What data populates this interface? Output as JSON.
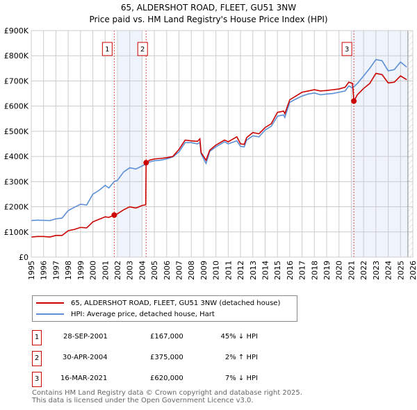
{
  "title": "65, ALDERSHOT ROAD, FLEET, GU51 3NW",
  "subtitle": "Price paid vs. HM Land Registry's House Price Index (HPI)",
  "chart_data": {
    "type": "line",
    "xlim": [
      1995,
      2026
    ],
    "ylim": [
      0,
      900000
    ],
    "yticks": [
      {
        "v": 0,
        "label": "£0"
      },
      {
        "v": 100000,
        "label": "£100K"
      },
      {
        "v": 200000,
        "label": "£200K"
      },
      {
        "v": 300000,
        "label": "£300K"
      },
      {
        "v": 400000,
        "label": "£400K"
      },
      {
        "v": 500000,
        "label": "£500K"
      },
      {
        "v": 600000,
        "label": "£600K"
      },
      {
        "v": 700000,
        "label": "£700K"
      },
      {
        "v": 800000,
        "label": "£800K"
      },
      {
        "v": 900000,
        "label": "£900K"
      }
    ],
    "xticks": [
      "1995",
      "1996",
      "1997",
      "1998",
      "1999",
      "2000",
      "2001",
      "2002",
      "2003",
      "2004",
      "2005",
      "2006",
      "2007",
      "2008",
      "2009",
      "2010",
      "2011",
      "2012",
      "2013",
      "2014",
      "2015",
      "2016",
      "2017",
      "2018",
      "2019",
      "2020",
      "2021",
      "2022",
      "2023",
      "2024",
      "2025",
      "2026"
    ],
    "grid": true,
    "shaded_ranges": [
      [
        2002,
        2004
      ],
      [
        2021,
        2025.6
      ]
    ],
    "forecast_hatch": [
      2025.6,
      2026
    ],
    "series": [
      {
        "name": "65, ALDERSHOT ROAD, FLEET, GU51 3NW (detached house)",
        "color": "#cc0000",
        "x": [
          1995,
          1995.5,
          1996,
          1996.5,
          1997,
          1997.5,
          1998,
          1998.5,
          1999,
          1999.5,
          2000,
          2000.5,
          2001,
          2001.3,
          2001.74,
          2002,
          2002.5,
          2003,
          2003.5,
          2004,
          2004.3,
          2004.33,
          2004.6,
          2005,
          2005.5,
          2006,
          2006.5,
          2007,
          2007.5,
          2008,
          2008.5,
          2008.7,
          2008.8,
          2009.2,
          2009.5,
          2010,
          2010.7,
          2011,
          2011.7,
          2012,
          2012.3,
          2012.5,
          2013,
          2013.5,
          2014,
          2014.5,
          2015,
          2015.5,
          2015.6,
          2016,
          2016.5,
          2017,
          2017.5,
          2018,
          2018.5,
          2019,
          2019.5,
          2020,
          2020.5,
          2020.8,
          2021.1,
          2021.21,
          2021.5,
          2022,
          2022.5,
          2023,
          2023.5,
          2024,
          2024.5,
          2025,
          2025.5
        ],
        "y": [
          80000,
          82000,
          82000,
          80000,
          86000,
          86000,
          105000,
          110000,
          118000,
          116000,
          140000,
          150000,
          160000,
          158000,
          167000,
          172000,
          188000,
          200000,
          195000,
          205000,
          208000,
          375000,
          385000,
          390000,
          392000,
          395000,
          400000,
          428000,
          465000,
          462000,
          460000,
          470000,
          415000,
          385000,
          425000,
          445000,
          465000,
          458000,
          478000,
          450000,
          448000,
          475000,
          495000,
          490000,
          515000,
          530000,
          575000,
          580000,
          570000,
          625000,
          640000,
          655000,
          660000,
          665000,
          660000,
          662000,
          665000,
          668000,
          675000,
          695000,
          690000,
          620000,
          645000,
          670000,
          690000,
          730000,
          725000,
          692000,
          695000,
          720000,
          705000
        ]
      },
      {
        "name": "HPI: Average price, detached house, Hart",
        "color": "#5b8fd6",
        "x": [
          1995,
          1995.5,
          1996,
          1996.5,
          1997,
          1997.5,
          1998,
          1998.5,
          1999,
          1999.5,
          2000,
          2000.5,
          2001,
          2001.3,
          2001.74,
          2002,
          2002.5,
          2003,
          2003.5,
          2004,
          2004.3,
          2004.6,
          2005,
          2005.5,
          2006,
          2006.5,
          2007,
          2007.5,
          2008,
          2008.5,
          2008.7,
          2008.8,
          2009.2,
          2009.5,
          2010,
          2010.7,
          2011,
          2011.7,
          2012,
          2012.3,
          2012.5,
          2013,
          2013.5,
          2014,
          2014.5,
          2015,
          2015.5,
          2015.6,
          2016,
          2016.5,
          2017,
          2017.5,
          2018,
          2018.5,
          2019,
          2019.5,
          2020,
          2020.5,
          2020.8,
          2021.1,
          2021.5,
          2022,
          2022.5,
          2023,
          2023.5,
          2024,
          2024.5,
          2025,
          2025.5
        ],
        "y": [
          145000,
          147000,
          146000,
          145000,
          152000,
          155000,
          185000,
          198000,
          210000,
          207000,
          250000,
          265000,
          285000,
          275000,
          300000,
          305000,
          338000,
          355000,
          350000,
          362000,
          370000,
          378000,
          383000,
          385000,
          390000,
          398000,
          418000,
          455000,
          455000,
          450000,
          455000,
          410000,
          372000,
          420000,
          438000,
          458000,
          450000,
          462000,
          440000,
          438000,
          465000,
          482000,
          478000,
          505000,
          520000,
          560000,
          565000,
          555000,
          615000,
          628000,
          640000,
          648000,
          652000,
          645000,
          648000,
          650000,
          655000,
          660000,
          680000,
          672000,
          690000,
          720000,
          750000,
          785000,
          780000,
          740000,
          745000,
          775000,
          755000
        ]
      }
    ],
    "sales": [
      {
        "id": "1",
        "x": 2001.74,
        "y": 167000
      },
      {
        "id": "2",
        "x": 2004.33,
        "y": 375000
      },
      {
        "id": "3",
        "x": 2021.21,
        "y": 620000
      }
    ]
  },
  "legend": {
    "items": [
      {
        "label": "65, ALDERSHOT ROAD, FLEET, GU51 3NW (detached house)",
        "color": "#cc0000"
      },
      {
        "label": "HPI: Average price, detached house, Hart",
        "color": "#5b8fd6"
      }
    ]
  },
  "transactions": [
    {
      "id": "1",
      "date": "28-SEP-2001",
      "price": "£167,000",
      "hpi": "45% ↓ HPI"
    },
    {
      "id": "2",
      "date": "30-APR-2004",
      "price": "£375,000",
      "hpi": "2% ↑ HPI"
    },
    {
      "id": "3",
      "date": "16-MAR-2021",
      "price": "£620,000",
      "hpi": "7% ↓ HPI"
    }
  ],
  "footer": {
    "line1": "Contains HM Land Registry data © Crown copyright and database right 2025.",
    "line2": "This data is licensed under the Open Government Licence v3.0."
  }
}
